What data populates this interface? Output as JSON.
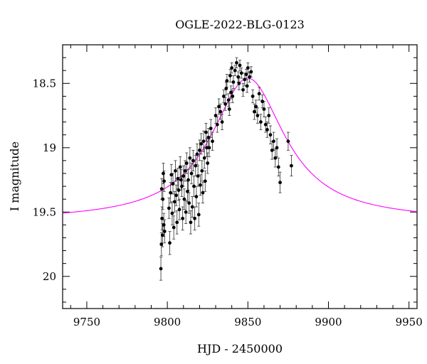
{
  "chart_data": {
    "type": "scatter",
    "title": "OGLE-2022-BLG-0123",
    "xlabel": "HJD - 2450000",
    "ylabel": "I magnitude",
    "xlim": [
      9735,
      9955
    ],
    "ylim": [
      20.25,
      18.2
    ],
    "y_inverted": true,
    "x_ticks": [
      9750,
      9800,
      9850,
      9900,
      9950
    ],
    "x_tick_labels": [
      "9750",
      "9800",
      "9850",
      "9900",
      "9950"
    ],
    "y_ticks": [
      18.5,
      19,
      19.5,
      20
    ],
    "y_tick_labels": [
      "18.5",
      "19",
      "19.5",
      "20"
    ],
    "grid": false,
    "colors": {
      "points": "#000000",
      "model": "#ff00ff"
    },
    "series": [
      {
        "kind": "points_with_errorbars",
        "x": [
          9796.0,
          9796.3,
          9796.5,
          9796.7,
          9797.0,
          9797.2,
          9797.5,
          9797.8,
          9798.0,
          9798.3,
          9801.0,
          9801.5,
          9802.0,
          9802.5,
          9803.0,
          9803.5,
          9804.0,
          9804.5,
          9805.0,
          9805.5,
          9806.0,
          9806.5,
          9807.0,
          9807.5,
          9808.0,
          9808.5,
          9809.0,
          9809.5,
          9810.0,
          9810.5,
          9811.0,
          9811.5,
          9812.0,
          9812.5,
          9813.0,
          9813.5,
          9814.0,
          9814.5,
          9815.0,
          9815.5,
          9816.0,
          9816.5,
          9817.0,
          9817.5,
          9818.0,
          9818.5,
          9819.0,
          9819.5,
          9820.0,
          9820.5,
          9821.0,
          9821.5,
          9822.0,
          9822.5,
          9823.0,
          9823.5,
          9824.0,
          9824.5,
          9825.0,
          9825.5,
          9826.0,
          9827.0,
          9828.0,
          9830.0,
          9831.0,
          9832.0,
          9833.0,
          9834.0,
          9835.0,
          9836.0,
          9836.5,
          9837.0,
          9838.0,
          9838.5,
          9839.0,
          9839.5,
          9840.0,
          9840.5,
          9841.0,
          9842.0,
          9843.0,
          9844.0,
          9844.5,
          9845.0,
          9846.0,
          9847.0,
          9848.0,
          9849.0,
          9849.5,
          9850.0,
          9851.0,
          9852.0,
          9853.0,
          9854.0,
          9855.0,
          9856.0,
          9857.0,
          9858.0,
          9859.0,
          9860.0,
          9861.0,
          9862.0,
          9863.0,
          9864.0,
          9865.0,
          9866.0,
          9867.0,
          9868.0,
          9869.0,
          9870.0,
          9875.0,
          9877.0
        ],
        "y": [
          19.94,
          19.75,
          19.32,
          19.55,
          19.68,
          19.4,
          19.2,
          19.6,
          19.26,
          19.65,
          19.47,
          19.74,
          19.35,
          19.21,
          19.51,
          19.28,
          19.62,
          19.42,
          19.18,
          19.37,
          19.58,
          19.24,
          19.33,
          19.48,
          19.15,
          19.25,
          19.3,
          19.55,
          19.22,
          19.4,
          19.18,
          19.5,
          19.12,
          19.34,
          19.25,
          19.43,
          19.08,
          19.58,
          19.2,
          19.46,
          19.1,
          19.3,
          19.55,
          19.14,
          19.38,
          19.05,
          19.22,
          19.52,
          19.02,
          19.29,
          18.97,
          19.18,
          19.35,
          18.95,
          19.08,
          19.26,
          18.88,
          19.0,
          19.12,
          18.92,
          19.0,
          18.85,
          18.95,
          18.75,
          18.82,
          18.68,
          18.72,
          18.8,
          18.6,
          18.66,
          18.54,
          18.48,
          18.63,
          18.7,
          18.44,
          18.57,
          18.38,
          18.6,
          18.49,
          18.4,
          18.34,
          18.45,
          18.5,
          18.36,
          18.42,
          18.55,
          18.47,
          18.43,
          18.52,
          18.38,
          18.45,
          18.41,
          18.6,
          18.72,
          18.68,
          18.75,
          18.58,
          18.8,
          18.64,
          18.7,
          18.82,
          18.86,
          18.75,
          18.9,
          19.02,
          18.95,
          19.08,
          19.0,
          19.15,
          19.27,
          18.95,
          19.14
        ],
        "errors": [
          0.09,
          0.09,
          0.08,
          0.09,
          0.09,
          0.08,
          0.08,
          0.09,
          0.08,
          0.09,
          0.08,
          0.09,
          0.08,
          0.08,
          0.09,
          0.08,
          0.09,
          0.08,
          0.08,
          0.08,
          0.09,
          0.08,
          0.08,
          0.08,
          0.08,
          0.08,
          0.08,
          0.09,
          0.08,
          0.08,
          0.08,
          0.09,
          0.08,
          0.08,
          0.08,
          0.08,
          0.08,
          0.09,
          0.08,
          0.08,
          0.08,
          0.08,
          0.09,
          0.08,
          0.08,
          0.08,
          0.08,
          0.09,
          0.08,
          0.08,
          0.08,
          0.08,
          0.08,
          0.08,
          0.08,
          0.08,
          0.07,
          0.07,
          0.08,
          0.07,
          0.07,
          0.07,
          0.07,
          0.06,
          0.06,
          0.06,
          0.06,
          0.06,
          0.05,
          0.05,
          0.05,
          0.05,
          0.05,
          0.05,
          0.05,
          0.05,
          0.04,
          0.05,
          0.05,
          0.04,
          0.04,
          0.04,
          0.05,
          0.04,
          0.04,
          0.05,
          0.05,
          0.04,
          0.05,
          0.04,
          0.04,
          0.04,
          0.05,
          0.06,
          0.05,
          0.06,
          0.05,
          0.06,
          0.05,
          0.06,
          0.06,
          0.06,
          0.06,
          0.07,
          0.07,
          0.07,
          0.07,
          0.07,
          0.07,
          0.08,
          0.07,
          0.08
        ]
      },
      {
        "kind": "model_curve",
        "model": {
          "baseline": 19.57,
          "peak": 18.46,
          "t0": 9850.0,
          "tE": 28.0,
          "shape": "lorentzian"
        }
      }
    ]
  }
}
